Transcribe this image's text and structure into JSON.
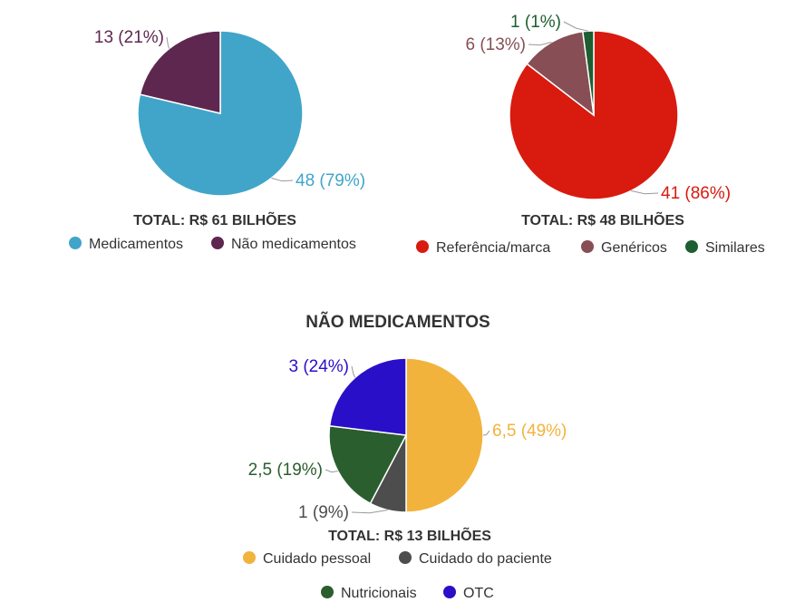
{
  "chart_data": [
    {
      "type": "pie",
      "title": "",
      "total_label": "TOTAL: R$ 61 BILHÕES",
      "legend_placement": "bottom",
      "slices": [
        {
          "name": "Medicamentos",
          "value": 48,
          "label": "48 (79%)",
          "color": "#41A5C9"
        },
        {
          "name": "Não medicamentos",
          "value": 13,
          "label": "13 (21%)",
          "color": "#5E2750"
        }
      ]
    },
    {
      "type": "pie",
      "title": "",
      "total_label": "TOTAL: R$ 48 BILHÕES",
      "legend_placement": "bottom",
      "slices": [
        {
          "name": "Referência/marca",
          "value": 41,
          "label": "41 (86%)",
          "color": "#D91A0E"
        },
        {
          "name": "Genéricos",
          "value": 6,
          "label": "6 (13%)",
          "color": "#874E55"
        },
        {
          "name": "Similares",
          "value": 1,
          "label": "1 (1%)",
          "color": "#1E5E30"
        }
      ]
    },
    {
      "type": "pie",
      "title": "NÃO MEDICAMENTOS",
      "total_label": "TOTAL: R$ 13 BILHÕES",
      "legend_placement": "bottom",
      "slices": [
        {
          "name": "Cuidado pessoal",
          "value": 6.5,
          "label": "6,5 (49%)",
          "color": "#F2B33D"
        },
        {
          "name": "Cuidado do paciente",
          "value": 1,
          "label": "1 (9%)",
          "color": "#4D4D4D"
        },
        {
          "name": "Nutricionais",
          "value": 2.5,
          "label": "2,5 (19%)",
          "color": "#2A5E2E"
        },
        {
          "name": "OTC",
          "value": 3,
          "label": "3 (24%)",
          "color": "#2A0FC8"
        }
      ]
    }
  ]
}
